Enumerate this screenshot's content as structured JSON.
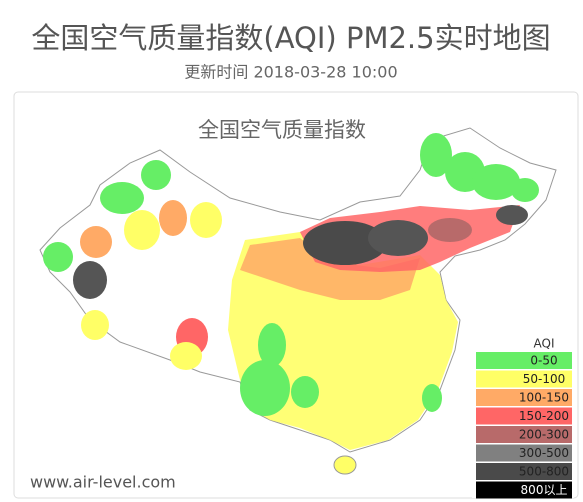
{
  "header": {
    "title": "全国空气质量指数(AQI) PM2.5实时地图",
    "subtitle": "更新时间 2018-03-28 10:00"
  },
  "map": {
    "title": "全国空气质量指数",
    "watermark": "www.air-level.com"
  },
  "legend": {
    "title": "AQI",
    "items": [
      {
        "label": "0-50",
        "color": "#66ee66"
      },
      {
        "label": "50-100",
        "color": "#ffff66"
      },
      {
        "label": "100-150",
        "color": "#ffaa66"
      },
      {
        "label": "150-200",
        "color": "#ff6666"
      },
      {
        "label": "200-300",
        "color": "#b86a6a"
      },
      {
        "label": "300-500",
        "color": "#808080"
      },
      {
        "label": "500-800",
        "color": "#4a4a4a"
      },
      {
        "label": "800以上",
        "color": "#000000"
      }
    ]
  }
}
